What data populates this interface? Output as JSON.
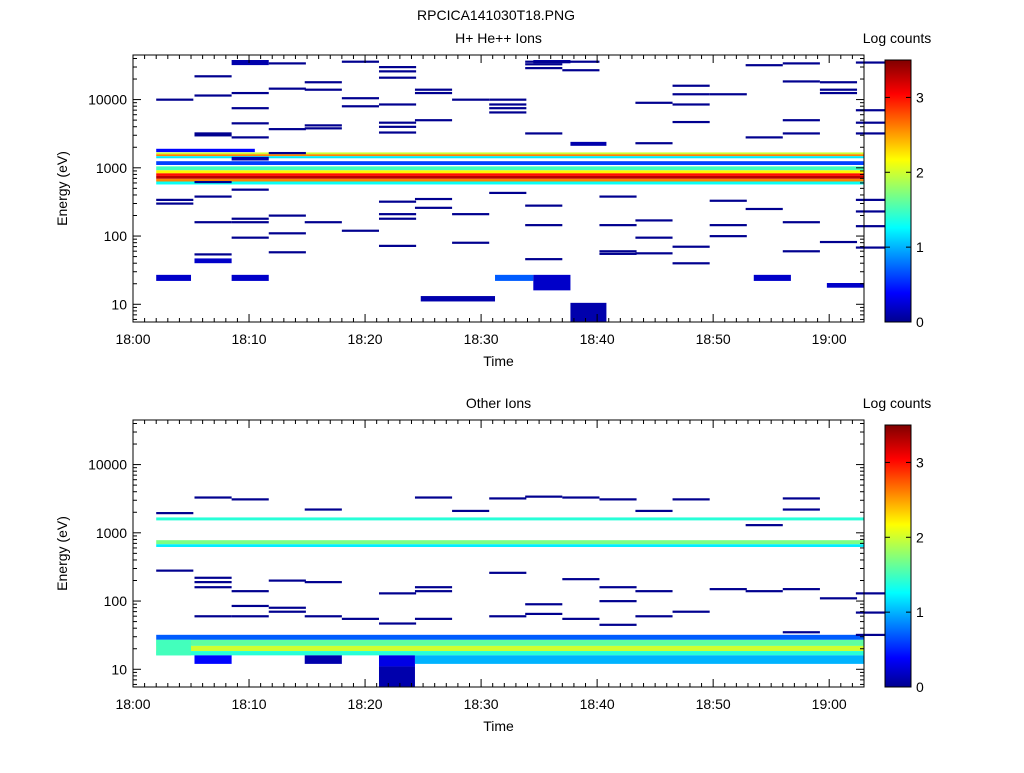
{
  "figure_title": "RPCICA141030T18.PNG",
  "chart_data": [
    {
      "type": "heatmap",
      "title": "H+ He++ Ions",
      "xlabel": "Time",
      "ylabel": "Energy (eV)",
      "colorbar_label": "Log counts",
      "x_ticks": [
        "18:00",
        "18:10",
        "18:20",
        "18:30",
        "18:40",
        "18:50",
        "19:00"
      ],
      "x_range_minutes": [
        0,
        63
      ],
      "y_scale": "log",
      "y_range": [
        5.5,
        45000
      ],
      "y_ticks": [
        "10",
        "100",
        "1000",
        "10000"
      ],
      "y_tick_values": [
        10,
        100,
        1000,
        10000
      ],
      "colorbar_ticks": [
        "0",
        "1",
        "2",
        "3"
      ],
      "colorbar_range": [
        0,
        3.5
      ],
      "grid": false,
      "cells": [
        [
          2,
          10.5,
          1700,
          1900,
          0.4
        ],
        [
          2,
          63,
          1580,
          1680,
          2.0
        ],
        [
          2,
          63,
          1480,
          1580,
          2.6
        ],
        [
          2,
          63,
          1380,
          1480,
          1.2
        ],
        [
          2,
          63,
          1100,
          1250,
          0.6
        ],
        [
          2,
          63,
          920,
          1050,
          1.5
        ],
        [
          2,
          63,
          830,
          920,
          2.2
        ],
        [
          2,
          63,
          760,
          830,
          3.0
        ],
        [
          2,
          63,
          690,
          760,
          3.3
        ],
        [
          2,
          63,
          630,
          690,
          2.6
        ],
        [
          2,
          63,
          570,
          630,
          1.3
        ],
        [
          2,
          5,
          22,
          27,
          0.2
        ],
        [
          5.3,
          8.5,
          40,
          47,
          0.2
        ],
        [
          8.5,
          11.7,
          22,
          27,
          0.2
        ],
        [
          24.8,
          31.2,
          11,
          13.2,
          0.1
        ],
        [
          31.2,
          34.5,
          22,
          27,
          0.7
        ],
        [
          34.5,
          37.7,
          16,
          27,
          0.2
        ],
        [
          37.7,
          40.8,
          5.6,
          10.5,
          0.1
        ],
        [
          53.5,
          56.7,
          22,
          27,
          0.2
        ],
        [
          59.8,
          63,
          17.5,
          20.5,
          0.2
        ],
        [
          8.5,
          11.7,
          32000,
          38000,
          0.1
        ],
        [
          34.5,
          37.7,
          34000,
          38000,
          0.1
        ],
        [
          37.7,
          40.8,
          2100,
          2400,
          0.1
        ],
        [
          8.5,
          11.7,
          1280,
          1450,
          0.1
        ]
      ],
      "lines": [
        [
          2,
          10000
        ],
        [
          2,
          340
        ],
        [
          2,
          300
        ],
        [
          5.3,
          22000
        ],
        [
          5.3,
          11500
        ],
        [
          5.3,
          3200
        ],
        [
          5.3,
          3000
        ],
        [
          5.3,
          620
        ],
        [
          5.3,
          380
        ],
        [
          5.3,
          160
        ],
        [
          5.3,
          54
        ],
        [
          8.5,
          12500
        ],
        [
          8.5,
          7500
        ],
        [
          8.5,
          4500
        ],
        [
          8.5,
          2800
        ],
        [
          8.5,
          480
        ],
        [
          8.5,
          180
        ],
        [
          8.5,
          160
        ],
        [
          8.5,
          95
        ],
        [
          11.7,
          34000
        ],
        [
          11.7,
          14500
        ],
        [
          11.7,
          3700
        ],
        [
          11.7,
          1650
        ],
        [
          11.7,
          200
        ],
        [
          11.7,
          110
        ],
        [
          11.7,
          58
        ],
        [
          14.8,
          18000
        ],
        [
          14.8,
          14000
        ],
        [
          14.8,
          4200
        ],
        [
          14.8,
          3800
        ],
        [
          14.8,
          160
        ],
        [
          18,
          36000
        ],
        [
          18,
          10500
        ],
        [
          18,
          8000
        ],
        [
          18,
          120
        ],
        [
          21.2,
          30000
        ],
        [
          21.2,
          26000
        ],
        [
          21.2,
          21000
        ],
        [
          21.2,
          8500
        ],
        [
          21.2,
          4600
        ],
        [
          21.2,
          4000
        ],
        [
          21.2,
          3300
        ],
        [
          21.2,
          320
        ],
        [
          21.2,
          210
        ],
        [
          21.2,
          180
        ],
        [
          21.2,
          72
        ],
        [
          24.3,
          14000
        ],
        [
          24.3,
          12500
        ],
        [
          24.3,
          5000
        ],
        [
          24.3,
          350
        ],
        [
          24.3,
          260
        ],
        [
          27.5,
          10000
        ],
        [
          27.5,
          210
        ],
        [
          27.5,
          80
        ],
        [
          30.7,
          10000
        ],
        [
          30.7,
          8500
        ],
        [
          30.7,
          7500
        ],
        [
          30.7,
          6500
        ],
        [
          30.7,
          430
        ],
        [
          33.8,
          36000
        ],
        [
          33.8,
          33000
        ],
        [
          33.8,
          29000
        ],
        [
          33.8,
          3200
        ],
        [
          33.8,
          280
        ],
        [
          33.8,
          145
        ],
        [
          33.8,
          46
        ],
        [
          37,
          36000
        ],
        [
          37,
          27000
        ],
        [
          40.2,
          380
        ],
        [
          40.2,
          145
        ],
        [
          40.2,
          60
        ],
        [
          40.2,
          55
        ],
        [
          43.3,
          9000
        ],
        [
          43.3,
          2300
        ],
        [
          43.3,
          170
        ],
        [
          43.3,
          95
        ],
        [
          43.3,
          56
        ],
        [
          46.5,
          16000
        ],
        [
          46.5,
          12000
        ],
        [
          46.5,
          8500
        ],
        [
          46.5,
          4700
        ],
        [
          46.5,
          70
        ],
        [
          46.5,
          40
        ],
        [
          49.7,
          12000
        ],
        [
          49.7,
          330
        ],
        [
          49.7,
          145
        ],
        [
          49.7,
          100
        ],
        [
          52.8,
          32000
        ],
        [
          52.8,
          2800
        ],
        [
          52.8,
          250
        ],
        [
          56,
          34000
        ],
        [
          56,
          18500
        ],
        [
          56,
          5000
        ],
        [
          56,
          3200
        ],
        [
          56,
          160
        ],
        [
          56,
          60
        ],
        [
          59.2,
          18000
        ],
        [
          59.2,
          14000
        ],
        [
          59.2,
          12500
        ],
        [
          59.2,
          82
        ],
        [
          62.3,
          35000
        ],
        [
          62.3,
          7000
        ],
        [
          62.3,
          4600
        ],
        [
          62.3,
          3200
        ],
        [
          62.3,
          340
        ],
        [
          62.3,
          230
        ],
        [
          62.3,
          140
        ],
        [
          62.3,
          68
        ]
      ]
    },
    {
      "type": "heatmap",
      "title": "Other Ions",
      "xlabel": "Time",
      "ylabel": "Energy (eV)",
      "colorbar_label": "Log counts",
      "x_ticks": [
        "18:00",
        "18:10",
        "18:20",
        "18:30",
        "18:40",
        "18:50",
        "19:00"
      ],
      "x_range_minutes": [
        0,
        63
      ],
      "y_scale": "log",
      "y_range": [
        5.5,
        45000
      ],
      "y_ticks": [
        "10",
        "100",
        "1000",
        "10000"
      ],
      "y_tick_values": [
        10,
        100,
        1000,
        10000
      ],
      "colorbar_ticks": [
        "0",
        "1",
        "2",
        "3"
      ],
      "colorbar_range": [
        0,
        3.5
      ],
      "grid": false,
      "cells": [
        [
          2,
          63,
          1520,
          1680,
          1.4
        ],
        [
          2,
          63,
          680,
          780,
          1.7
        ],
        [
          2,
          63,
          620,
          680,
          1.2
        ],
        [
          2,
          63,
          27,
          32,
          0.7
        ],
        [
          2,
          63,
          22,
          27,
          1.6
        ],
        [
          2,
          63,
          18.5,
          22,
          2.0
        ],
        [
          2,
          63,
          16,
          18.5,
          1.4
        ],
        [
          2,
          5,
          16,
          27,
          1.5
        ],
        [
          5.3,
          8.5,
          12,
          16,
          0.4
        ],
        [
          14.8,
          18,
          12,
          16,
          0.1
        ],
        [
          21.2,
          24.3,
          5.6,
          11,
          0.1
        ],
        [
          21.2,
          24.3,
          11,
          16,
          0.3
        ],
        [
          24.3,
          63,
          12,
          16,
          1.0
        ]
      ],
      "lines": [
        [
          2,
          1950
        ],
        [
          2,
          280
        ],
        [
          5.3,
          3300
        ],
        [
          5.3,
          220
        ],
        [
          5.3,
          190
        ],
        [
          5.3,
          160
        ],
        [
          5.3,
          60
        ],
        [
          8.5,
          3100
        ],
        [
          8.5,
          140
        ],
        [
          8.5,
          85
        ],
        [
          8.5,
          60
        ],
        [
          11.7,
          200
        ],
        [
          11.7,
          80
        ],
        [
          11.7,
          70
        ],
        [
          14.8,
          2200
        ],
        [
          14.8,
          190
        ],
        [
          14.8,
          60
        ],
        [
          18,
          55
        ],
        [
          21.2,
          130
        ],
        [
          21.2,
          47
        ],
        [
          24.3,
          3300
        ],
        [
          24.3,
          160
        ],
        [
          24.3,
          140
        ],
        [
          24.3,
          55
        ],
        [
          27.5,
          2100
        ],
        [
          30.7,
          3200
        ],
        [
          30.7,
          260
        ],
        [
          30.7,
          60
        ],
        [
          33.8,
          3400
        ],
        [
          33.8,
          90
        ],
        [
          33.8,
          65
        ],
        [
          37,
          3300
        ],
        [
          37,
          210
        ],
        [
          37,
          55
        ],
        [
          40.2,
          3100
        ],
        [
          40.2,
          160
        ],
        [
          40.2,
          100
        ],
        [
          40.2,
          45
        ],
        [
          43.3,
          2100
        ],
        [
          43.3,
          140
        ],
        [
          43.3,
          60
        ],
        [
          46.5,
          3100
        ],
        [
          46.5,
          70
        ],
        [
          49.7,
          150
        ],
        [
          52.8,
          1300
        ],
        [
          52.8,
          140
        ],
        [
          56,
          3200
        ],
        [
          56,
          2200
        ],
        [
          56,
          150
        ],
        [
          56,
          35
        ],
        [
          59.2,
          110
        ],
        [
          62.3,
          130
        ],
        [
          62.3,
          68
        ],
        [
          62.3,
          32
        ]
      ]
    }
  ]
}
